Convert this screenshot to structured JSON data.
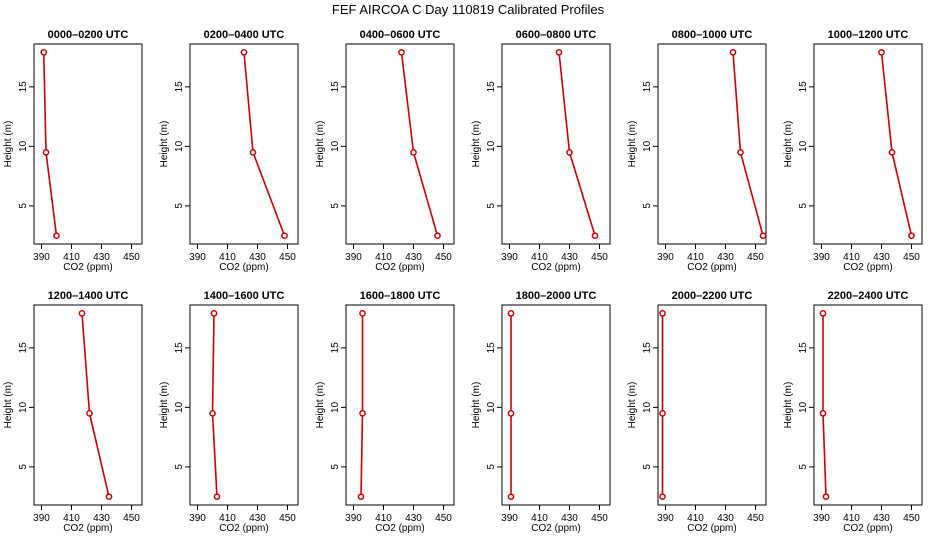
{
  "chart_data": {
    "type": "line",
    "title": "FEF AIRCOA C  Day 110819  Calibrated Profiles",
    "xlabel": "CO2 (ppm)",
    "ylabel": "Height (m)",
    "xlim": [
      385,
      457
    ],
    "ylim": [
      1.8,
      18.6
    ],
    "xticks": [
      390,
      410,
      430,
      450
    ],
    "yticks": [
      5,
      10,
      15
    ],
    "series_color": "#d40000",
    "heights": [
      17.9,
      9.5,
      2.5
    ],
    "panels": [
      {
        "title": "0000–0200 UTC",
        "values": [
          391.5,
          393,
          400
        ]
      },
      {
        "title": "0200–0400 UTC",
        "values": [
          421,
          427,
          448
        ]
      },
      {
        "title": "0400–0600 UTC",
        "values": [
          422,
          430,
          446
        ]
      },
      {
        "title": "0600–0800 UTC",
        "values": [
          423,
          430,
          447
        ]
      },
      {
        "title": "0800–1000 UTC",
        "values": [
          435,
          440,
          455
        ]
      },
      {
        "title": "1000–1200 UTC",
        "values": [
          430,
          437,
          450
        ]
      },
      {
        "title": "1200–1400 UTC",
        "values": [
          417,
          422,
          435
        ]
      },
      {
        "title": "1400–1600 UTC",
        "values": [
          401,
          400,
          403
        ]
      },
      {
        "title": "1600–1800 UTC",
        "values": [
          396,
          396,
          395
        ]
      },
      {
        "title": "1800–2000 UTC",
        "values": [
          391,
          391,
          391
        ]
      },
      {
        "title": "2000–2200 UTC",
        "values": [
          388,
          388,
          388
        ]
      },
      {
        "title": "2200–2400 UTC",
        "values": [
          391,
          391,
          393
        ]
      }
    ]
  }
}
